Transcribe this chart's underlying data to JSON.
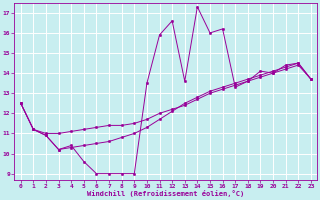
{
  "xlabel": "Windchill (Refroidissement éolien,°C)",
  "bg_color": "#c8eef0",
  "grid_color": "#ffffff",
  "line_color": "#990099",
  "x_ticks": [
    0,
    1,
    2,
    3,
    4,
    5,
    6,
    7,
    8,
    9,
    10,
    11,
    12,
    13,
    14,
    15,
    16,
    17,
    18,
    19,
    20,
    21,
    22,
    23
  ],
  "y_ticks": [
    9,
    10,
    11,
    12,
    13,
    14,
    15,
    16,
    17
  ],
  "ylim": [
    8.7,
    17.5
  ],
  "xlim": [
    -0.5,
    23.5
  ],
  "line1_x": [
    0,
    1,
    2,
    3,
    4,
    5,
    6,
    7,
    8,
    9,
    10,
    11,
    12,
    13,
    14,
    15,
    16,
    17,
    18,
    19,
    20,
    21,
    22,
    23
  ],
  "line1_y": [
    12.5,
    11.2,
    10.9,
    10.2,
    10.4,
    9.6,
    9.0,
    9.0,
    9.0,
    9.0,
    13.5,
    15.9,
    16.6,
    13.6,
    17.3,
    16.0,
    16.2,
    13.3,
    13.6,
    14.1,
    14.0,
    14.4,
    14.5,
    13.7
  ],
  "line2_x": [
    0,
    1,
    2,
    3,
    4,
    5,
    6,
    7,
    8,
    9,
    10,
    11,
    12,
    13,
    14,
    15,
    16,
    17,
    18,
    19,
    20,
    21,
    22,
    23
  ],
  "line2_y": [
    12.5,
    11.2,
    11.0,
    11.0,
    11.1,
    11.2,
    11.3,
    11.4,
    11.4,
    11.5,
    11.7,
    12.0,
    12.2,
    12.4,
    12.7,
    13.0,
    13.2,
    13.4,
    13.6,
    13.8,
    14.0,
    14.2,
    14.4,
    13.7
  ],
  "line3_x": [
    0,
    1,
    2,
    3,
    4,
    5,
    6,
    7,
    8,
    9,
    10,
    11,
    12,
    13,
    14,
    15,
    16,
    17,
    18,
    19,
    20,
    21,
    22,
    23
  ],
  "line3_y": [
    12.5,
    11.2,
    10.9,
    10.2,
    10.3,
    10.4,
    10.5,
    10.6,
    10.8,
    11.0,
    11.3,
    11.7,
    12.1,
    12.5,
    12.8,
    13.1,
    13.3,
    13.5,
    13.7,
    13.9,
    14.1,
    14.3,
    14.5,
    13.7
  ]
}
